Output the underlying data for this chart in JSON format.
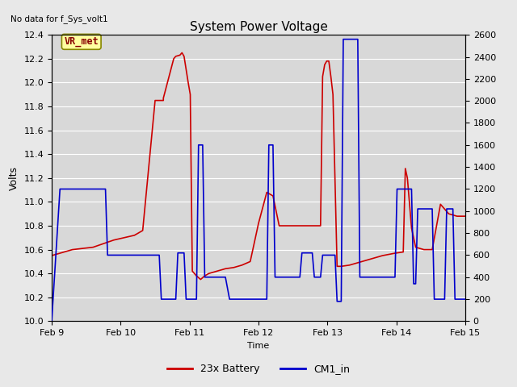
{
  "title": "System Power Voltage",
  "top_left_text": "No data for f_Sys_volt1",
  "ylabel_left": "Volts",
  "xlabel": "Time",
  "ylim_left": [
    10.0,
    12.4
  ],
  "ylim_right": [
    0,
    2600
  ],
  "yticks_left": [
    10.0,
    10.2,
    10.4,
    10.6,
    10.8,
    11.0,
    11.2,
    11.4,
    11.6,
    11.8,
    12.0,
    12.2,
    12.4
  ],
  "yticks_right": [
    0,
    200,
    400,
    600,
    800,
    1000,
    1200,
    1400,
    1600,
    1800,
    2000,
    2200,
    2400,
    2600
  ],
  "xtick_positions": [
    0,
    1,
    2,
    3,
    4,
    5,
    6
  ],
  "xtick_labels": [
    "Feb 9",
    "Feb 10",
    "Feb 11",
    "Feb 12",
    "Feb 13",
    "Feb 14",
    "Feb 15"
  ],
  "vr_met_label": "VR_met",
  "vr_met_bg": "#ffffa0",
  "vr_met_border": "#888800",
  "vr_met_text_color": "#880000",
  "legend_labels": [
    "23x Battery",
    "CM1_in"
  ],
  "legend_colors": [
    "#cc0000",
    "#0000cc"
  ],
  "red_x": [
    0.0,
    0.05,
    0.1,
    0.15,
    0.2,
    0.22,
    0.25,
    0.27,
    0.27,
    0.295,
    0.3,
    0.31,
    0.315,
    0.32,
    0.33,
    0.335,
    0.34,
    0.35,
    0.36,
    0.37,
    0.38,
    0.4,
    0.42,
    0.44,
    0.46,
    0.48,
    0.5,
    0.52,
    0.535,
    0.55,
    0.6,
    0.65,
    0.65,
    0.655,
    0.66,
    0.665,
    0.67,
    0.675,
    0.68,
    0.69,
    0.7,
    0.72,
    0.75,
    0.78,
    0.8,
    0.83,
    0.85,
    0.855,
    0.86,
    0.87,
    0.88,
    0.9,
    0.92,
    0.94,
    0.96,
    0.98,
    1.0
  ],
  "red_y": [
    10.55,
    10.6,
    10.62,
    10.68,
    10.72,
    10.76,
    11.85,
    11.85,
    11.87,
    12.2,
    12.22,
    12.23,
    12.25,
    12.22,
    12.0,
    11.9,
    10.42,
    10.38,
    10.35,
    10.38,
    10.4,
    10.42,
    10.44,
    10.45,
    10.47,
    10.5,
    10.82,
    11.08,
    11.05,
    10.8,
    10.8,
    10.8,
    10.8,
    12.05,
    12.15,
    12.18,
    12.18,
    12.05,
    11.9,
    10.46,
    10.46,
    10.47,
    10.5,
    10.53,
    10.55,
    10.57,
    10.58,
    11.28,
    11.2,
    10.78,
    10.62,
    10.6,
    10.6,
    10.98,
    10.9,
    10.88,
    10.88
  ],
  "blue_x": [
    0.0,
    0.02,
    0.13,
    0.135,
    0.26,
    0.265,
    0.3,
    0.305,
    0.32,
    0.325,
    0.35,
    0.355,
    0.365,
    0.37,
    0.42,
    0.43,
    0.5,
    0.505,
    0.52,
    0.525,
    0.535,
    0.54,
    0.6,
    0.605,
    0.63,
    0.635,
    0.65,
    0.655,
    0.685,
    0.69,
    0.7,
    0.705,
    0.735,
    0.74,
    0.74,
    0.745,
    0.83,
    0.835,
    0.87,
    0.875,
    0.88,
    0.885,
    0.92,
    0.925,
    0.95,
    0.955,
    0.97,
    0.975,
    1.0
  ],
  "blue_y": [
    0,
    1200,
    1200,
    600,
    600,
    200,
    200,
    620,
    620,
    200,
    200,
    1600,
    1600,
    400,
    400,
    200,
    200,
    200,
    200,
    1600,
    1600,
    400,
    400,
    620,
    620,
    400,
    400,
    600,
    600,
    180,
    180,
    2560,
    2560,
    2560,
    2560,
    400,
    400,
    1200,
    1200,
    340,
    340,
    1020,
    1020,
    200,
    200,
    1020,
    1020,
    200,
    200
  ],
  "grid_color": "#ffffff",
  "plot_bg": "#d8d8d8",
  "fig_bg": "#e8e8e8",
  "linewidth": 1.2
}
